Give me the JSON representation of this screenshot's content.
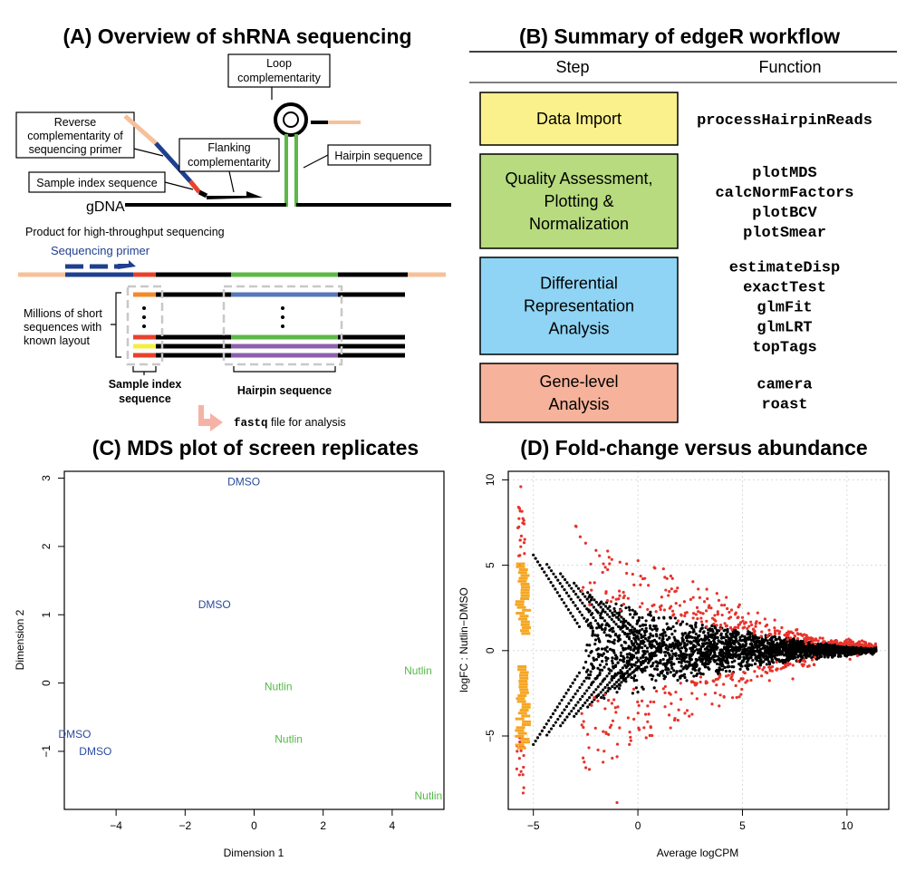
{
  "panelA": {
    "title": "(A) Overview of shRNA sequencing",
    "loop_label": [
      "Loop",
      "complementarity"
    ],
    "reverse_label": [
      "Reverse",
      "complementarity of",
      "sequencing primer"
    ],
    "flanking_label": [
      "Flanking",
      "complementarity"
    ],
    "hairpin_label": "Hairpin sequence",
    "sample_index_label": "Sample index sequence",
    "gdna": "gDNA",
    "product_label": "Product for high-throughput sequencing",
    "seq_primer": "Sequencing primer",
    "millions_label": [
      "Millions of short",
      "sequences with",
      "known layout"
    ],
    "sample_index_bottom": [
      "Sample index",
      "sequence"
    ],
    "hairpin_bottom": "Hairpin sequence",
    "fastq_code": "fastq",
    "fastq_rest": " file for analysis",
    "colors": {
      "peach": "#f6c09a",
      "navy": "#1f3f8f",
      "red": "#e8412c",
      "green": "#5db848",
      "orange": "#f28a2b",
      "yellow": "#f4ef3f",
      "blue": "#5877b8",
      "purple": "#8e5fad",
      "gray_dash": "#c8c8c8",
      "arrow_pink": "#f4b3a6"
    }
  },
  "panelB": {
    "title": "(B) Summary of edgeR workflow",
    "col_step": "Step",
    "col_function": "Function",
    "rows": [
      {
        "step": [
          "Data Import"
        ],
        "functions": [
          "processHairpinReads"
        ],
        "color": "#fbf18c"
      },
      {
        "step": [
          "Quality Assessment,",
          "Plotting &",
          "Normalization"
        ],
        "functions": [
          "plotMDS",
          "calcNormFactors",
          "plotBCV",
          "plotSmear"
        ],
        "color": "#b7db7e"
      },
      {
        "step": [
          "Differential",
          "Representation",
          "Analysis"
        ],
        "functions": [
          "estimateDisp",
          "exactTest",
          "glmFit",
          "glmLRT",
          "topTags"
        ],
        "color": "#8fd4f4"
      },
      {
        "step": [
          "Gene-level",
          "Analysis"
        ],
        "functions": [
          "camera",
          "roast"
        ],
        "color": "#f6b29a"
      }
    ]
  },
  "panelC": {
    "title": "(C) MDS plot of screen replicates",
    "xlabel": "Dimension 1",
    "ylabel": "Dimension 2",
    "xticks": [
      -4,
      -2,
      0,
      2,
      4
    ],
    "yticks": [
      -1,
      0,
      1,
      2,
      3
    ],
    "colors": {
      "DMSO": "#2a4a9c",
      "Nutlin": "#54b948"
    }
  },
  "panelD": {
    "title": "(D) Fold-change versus abundance",
    "xlabel": "Average logCPM",
    "ylabel": "logFC : Nutlin−DMSO",
    "xticks": [
      -5,
      0,
      5,
      10
    ],
    "yticks": [
      -5,
      0,
      5,
      10
    ],
    "colors": {
      "points": "#000000",
      "de": "#e8322a",
      "low": "#f5a623"
    }
  },
  "chart_data": [
    {
      "type": "scatter",
      "title": "(C) MDS plot of screen replicates",
      "xlabel": "Dimension 1",
      "ylabel": "Dimension 2",
      "xlim": [
        -5.5,
        5.5
      ],
      "ylim": [
        -1.85,
        3.1
      ],
      "grid": false,
      "series": [
        {
          "name": "DMSO",
          "points": [
            {
              "x": -0.3,
              "y": 2.95,
              "label": "DMSO"
            },
            {
              "x": -1.15,
              "y": 1.15,
              "label": "DMSO"
            },
            {
              "x": -5.2,
              "y": -0.75,
              "label": "DMSO"
            },
            {
              "x": -4.6,
              "y": -1.0,
              "label": "DMSO"
            }
          ]
        },
        {
          "name": "Nutlin",
          "points": [
            {
              "x": 4.75,
              "y": 0.18,
              "label": "Nutlin"
            },
            {
              "x": 0.7,
              "y": -0.05,
              "label": "Nutlin"
            },
            {
              "x": 1.0,
              "y": -0.82,
              "label": "Nutlin"
            },
            {
              "x": 5.05,
              "y": -1.65,
              "label": "Nutlin"
            }
          ]
        }
      ]
    },
    {
      "type": "scatter",
      "title": "(D) Fold-change versus abundance",
      "xlabel": "Average logCPM",
      "ylabel": "logFC : Nutlin−DMSO",
      "xlim": [
        -6.2,
        12
      ],
      "ylim": [
        -9.3,
        10.5
      ],
      "grid": true,
      "cloud_apex": {
        "x": 11.4,
        "y": 0.1
      },
      "outer_spread": {
        "x": -2.6,
        "y_pos": 6.0,
        "y_neg": -6.0
      },
      "low_abundance_band": {
        "x": -5.5,
        "y_ranges": [
          [
            1.0,
            5.2
          ],
          [
            -0.8,
            -5.7
          ]
        ]
      },
      "max_logFC": 9.6,
      "min_logFC": -8.9
    }
  ]
}
